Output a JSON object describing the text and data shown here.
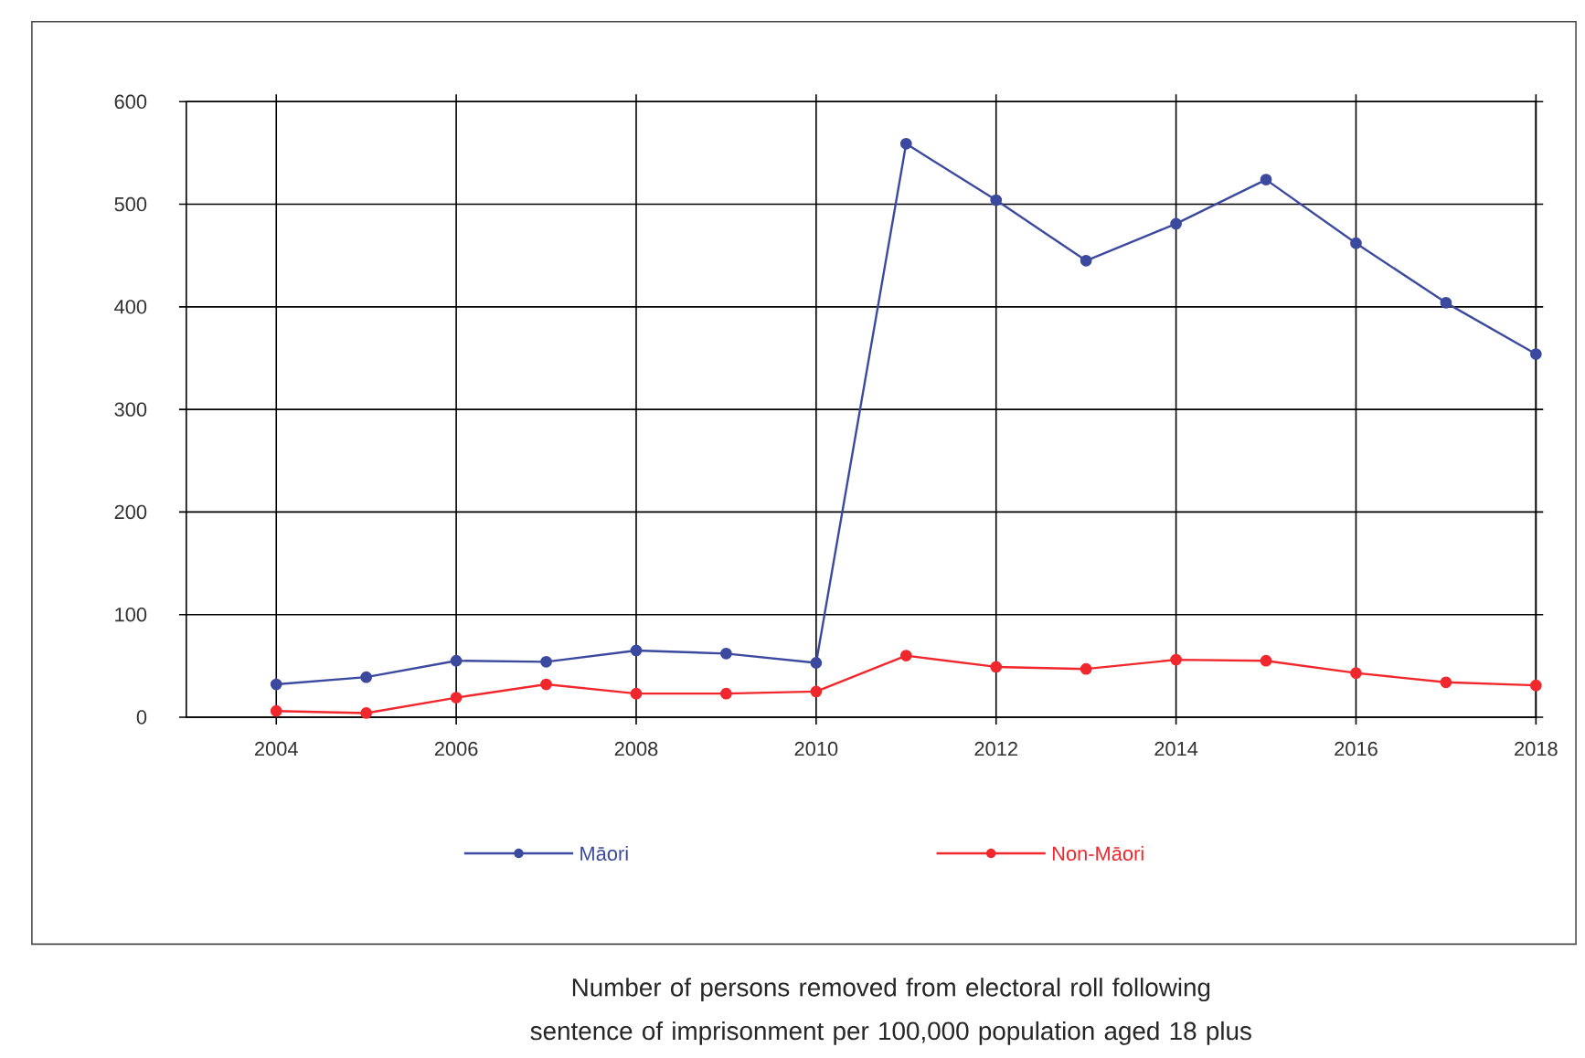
{
  "chart_data": {
    "type": "line",
    "x": [
      2004,
      2005,
      2006,
      2007,
      2008,
      2009,
      2010,
      2011,
      2012,
      2013,
      2014,
      2015,
      2016,
      2017,
      2018
    ],
    "series": [
      {
        "name": "Māori",
        "color": "#3b4a9e",
        "values": [
          32,
          39,
          55,
          54,
          65,
          62,
          53,
          559,
          504,
          445,
          481,
          524,
          462,
          404,
          354
        ]
      },
      {
        "name": "Non-Māori",
        "color": "#f0282d",
        "values": [
          6,
          4,
          19,
          32,
          23,
          23,
          25,
          60,
          49,
          47,
          56,
          55,
          43,
          34,
          31
        ]
      }
    ],
    "xlim": [
      2003,
      2018
    ],
    "xticks": [
      2004,
      2006,
      2008,
      2010,
      2012,
      2014,
      2016,
      2018
    ],
    "ylim": [
      0,
      600
    ],
    "yticks": [
      0,
      100,
      200,
      300,
      400,
      500,
      600
    ],
    "grid": true,
    "legend": "bottom",
    "marker": "circle",
    "line_style": "solid",
    "annotations": [
      "Number of persons removed from electoral roll following sentence of imprisonment per 100,000 population aged 18 plus"
    ]
  }
}
